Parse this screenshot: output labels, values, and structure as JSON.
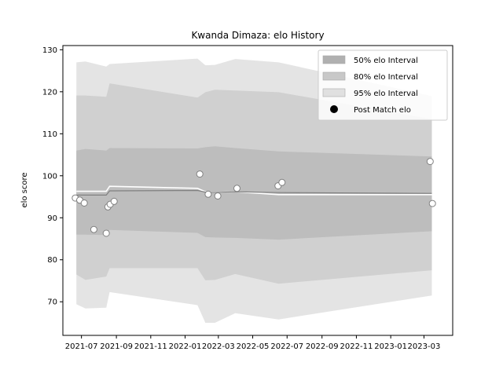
{
  "chart_data": {
    "type": "line",
    "title": "Kwanda Dimaza: elo History",
    "xlabel": "",
    "ylabel": "elo score",
    "ylim": [
      62,
      131
    ],
    "yticks": [
      70,
      80,
      90,
      100,
      110,
      120,
      130
    ],
    "xlim": [
      "2021-05-29",
      "2023-04-21"
    ],
    "xticks": [
      "2021-07",
      "2021-09",
      "2021-11",
      "2022-01",
      "2022-03",
      "2022-05",
      "2022-07",
      "2022-09",
      "2022-11",
      "2023-01",
      "2023-03"
    ],
    "grid": false,
    "legend_position": "top-right",
    "legend": [
      {
        "label": "50% elo Interval",
        "color": "#b0b0b0",
        "kind": "band"
      },
      {
        "label": "80% elo Interval",
        "color": "#c8c8c8",
        "kind": "band"
      },
      {
        "label": "95% elo Interval",
        "color": "#e0e0e0",
        "kind": "band"
      },
      {
        "label": "Post Match elo",
        "color": "#000000",
        "kind": "marker"
      }
    ],
    "colors": {
      "band50": "#bdbdbd",
      "band80": "#d0d0d0",
      "band95": "#e4e4e4",
      "mean_line": "#808080",
      "marker_edge": "#808080"
    },
    "bands": {
      "dates": [
        "2021-06-22",
        "2021-07-08",
        "2021-08-14",
        "2021-08-20",
        "2022-01-23",
        "2022-02-06",
        "2022-02-23",
        "2022-03-31",
        "2022-06-16",
        "2023-03-15"
      ],
      "p95_upper": [
        127.0,
        127.2,
        126.0,
        126.6,
        127.9,
        126.3,
        126.4,
        127.8,
        127.0,
        119.0
      ],
      "p95_lower": [
        69.4,
        68.4,
        68.6,
        72.3,
        69.2,
        65.0,
        65.0,
        67.3,
        65.8,
        71.5
      ],
      "p80_upper": [
        119.1,
        119.1,
        118.8,
        122.0,
        118.6,
        119.9,
        120.5,
        120.3,
        119.9,
        113.5
      ],
      "p80_lower": [
        76.5,
        75.2,
        76.0,
        78.0,
        78.0,
        75.1,
        75.2,
        76.6,
        74.3,
        77.5
      ],
      "p50_upper": [
        106.0,
        106.4,
        106.0,
        106.6,
        106.5,
        106.8,
        107.0,
        106.6,
        105.8,
        104.6
      ],
      "p50_lower": [
        86.0,
        86.0,
        85.9,
        87.1,
        86.4,
        85.4,
        85.3,
        85.2,
        84.8,
        86.8
      ],
      "mean": [
        95.4,
        95.4,
        95.4,
        96.4,
        96.5,
        96.1,
        96.0,
        96.2,
        96.0,
        95.8
      ],
      "highlight": [
        96.3,
        96.3,
        96.3,
        97.5,
        97.0,
        96.2,
        96.0,
        96.2,
        95.5,
        95.5
      ]
    },
    "points": [
      {
        "x": "2021-06-20",
        "y": 94.7
      },
      {
        "x": "2021-06-28",
        "y": 94.2
      },
      {
        "x": "2021-07-06",
        "y": 93.5
      },
      {
        "x": "2021-07-23",
        "y": 87.2
      },
      {
        "x": "2021-08-14",
        "y": 86.3
      },
      {
        "x": "2021-08-17",
        "y": 92.6
      },
      {
        "x": "2021-08-21",
        "y": 93.2
      },
      {
        "x": "2021-08-28",
        "y": 93.9
      },
      {
        "x": "2022-01-27",
        "y": 100.4
      },
      {
        "x": "2022-02-11",
        "y": 95.6
      },
      {
        "x": "2022-02-28",
        "y": 95.2
      },
      {
        "x": "2022-04-03",
        "y": 97.0
      },
      {
        "x": "2022-06-15",
        "y": 97.6
      },
      {
        "x": "2022-06-22",
        "y": 98.4
      },
      {
        "x": "2023-03-12",
        "y": 103.4
      },
      {
        "x": "2023-03-16",
        "y": 93.4
      }
    ]
  }
}
